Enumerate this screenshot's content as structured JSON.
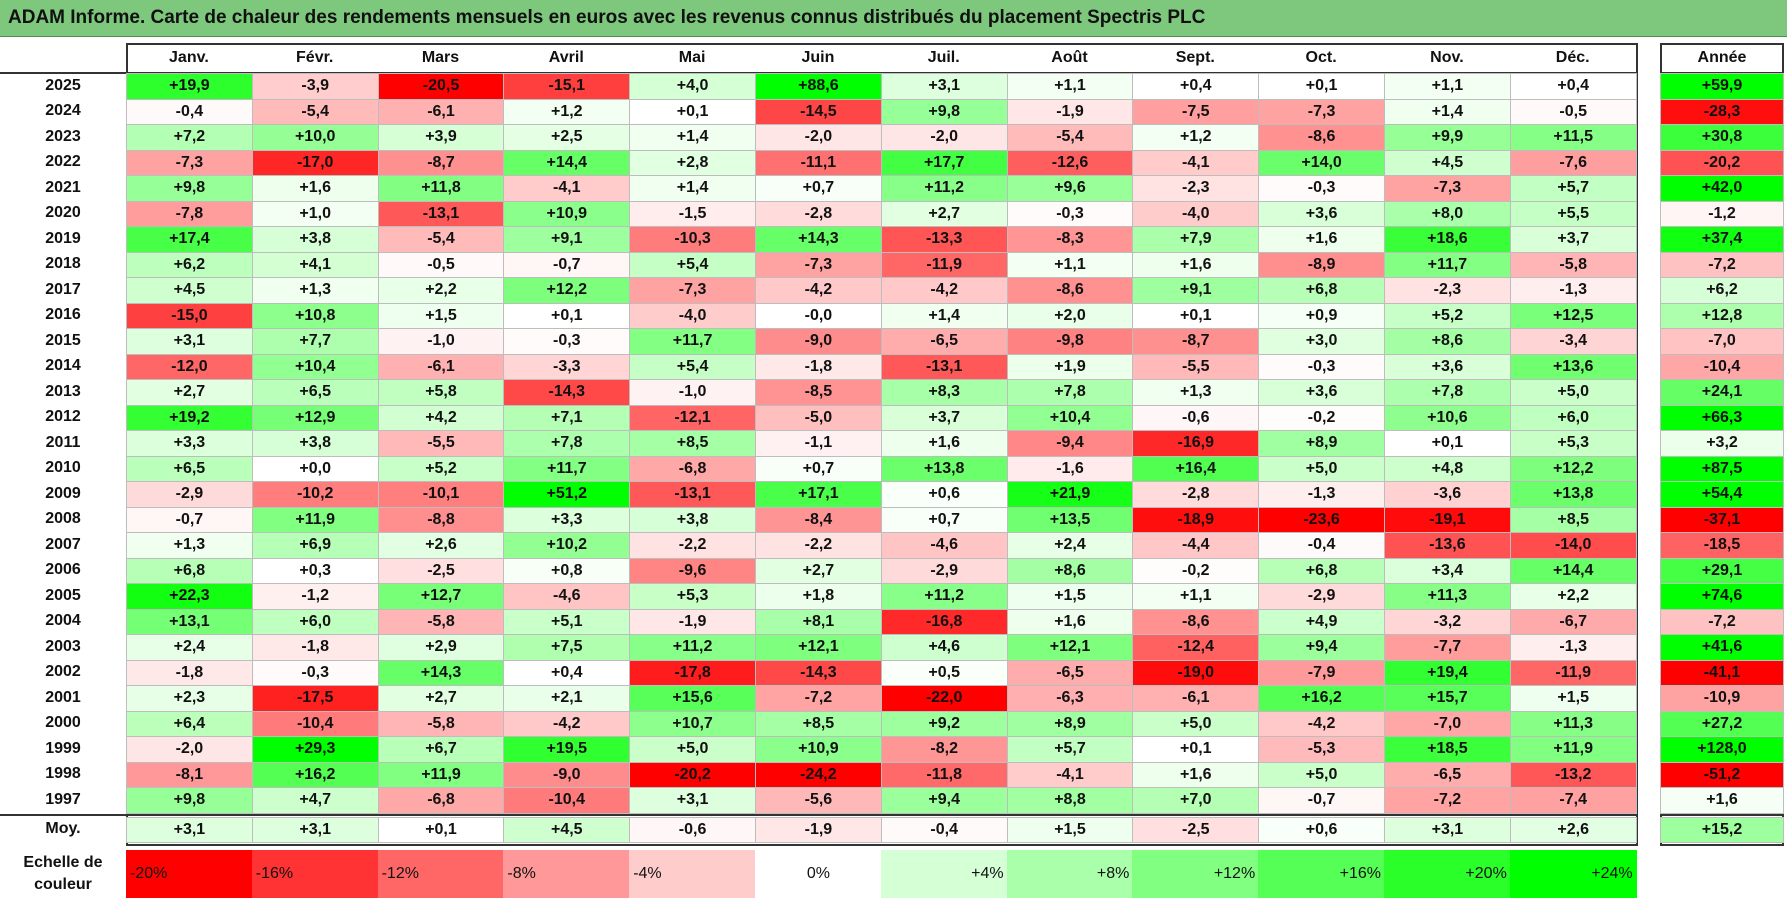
{
  "title": "ADAM Informe. Carte de chaleur des rendements mensuels en euros avec les revenus connus distribués du placement Spectris PLC",
  "chart_data": {
    "type": "heatmap",
    "title": "ADAM Informe. Carte de chaleur des rendements mensuels en euros avec les revenus connus distribués du placement Spectris PLC",
    "months": [
      "Janv.",
      "Févr.",
      "Mars",
      "Avril",
      "Mai",
      "Juin",
      "Juil.",
      "Août",
      "Sept.",
      "Oct.",
      "Nov.",
      "Déc."
    ],
    "year_header": "Année",
    "rows": [
      {
        "year": "2025",
        "values": [
          "+19,9",
          "-3,9",
          "-20,5",
          "-15,1",
          "+4,0",
          "+88,6",
          "+3,1",
          "+1,1",
          "+0,4",
          "+0,1",
          "+1,1",
          "+0,4"
        ],
        "annual": "+59,9"
      },
      {
        "year": "2024",
        "values": [
          "-0,4",
          "-5,4",
          "-6,1",
          "+1,2",
          "+0,1",
          "-14,5",
          "+9,8",
          "-1,9",
          "-7,5",
          "-7,3",
          "+1,4",
          "-0,5"
        ],
        "annual": "-28,3"
      },
      {
        "year": "2023",
        "values": [
          "+7,2",
          "+10,0",
          "+3,9",
          "+2,5",
          "+1,4",
          "-2,0",
          "-2,0",
          "-5,4",
          "+1,2",
          "-8,6",
          "+9,9",
          "+11,5"
        ],
        "annual": "+30,8"
      },
      {
        "year": "2022",
        "values": [
          "-7,3",
          "-17,0",
          "-8,7",
          "+14,4",
          "+2,8",
          "-11,1",
          "+17,7",
          "-12,6",
          "-4,1",
          "+14,0",
          "+4,5",
          "-7,6"
        ],
        "annual": "-20,2"
      },
      {
        "year": "2021",
        "values": [
          "+9,8",
          "+1,6",
          "+11,8",
          "-4,1",
          "+1,4",
          "+0,7",
          "+11,2",
          "+9,6",
          "-2,3",
          "-0,3",
          "-7,3",
          "+5,7"
        ],
        "annual": "+42,0"
      },
      {
        "year": "2020",
        "values": [
          "-7,8",
          "+1,0",
          "-13,1",
          "+10,9",
          "-1,5",
          "-2,8",
          "+2,7",
          "-0,3",
          "-4,0",
          "+3,6",
          "+8,0",
          "+5,5"
        ],
        "annual": "-1,2"
      },
      {
        "year": "2019",
        "values": [
          "+17,4",
          "+3,8",
          "-5,4",
          "+9,1",
          "-10,3",
          "+14,3",
          "-13,3",
          "-8,3",
          "+7,9",
          "+1,6",
          "+18,6",
          "+3,7"
        ],
        "annual": "+37,4"
      },
      {
        "year": "2018",
        "values": [
          "+6,2",
          "+4,1",
          "-0,5",
          "-0,7",
          "+5,4",
          "-7,3",
          "-11,9",
          "+1,1",
          "+1,6",
          "-8,9",
          "+11,7",
          "-5,8"
        ],
        "annual": "-7,2"
      },
      {
        "year": "2017",
        "values": [
          "+4,5",
          "+1,3",
          "+2,2",
          "+12,2",
          "-7,3",
          "-4,2",
          "-4,2",
          "-8,6",
          "+9,1",
          "+6,8",
          "-2,3",
          "-1,3"
        ],
        "annual": "+6,2"
      },
      {
        "year": "2016",
        "values": [
          "-15,0",
          "+10,8",
          "+1,5",
          "+0,1",
          "-4,0",
          "-0,0",
          "+1,4",
          "+2,0",
          "+0,1",
          "+0,9",
          "+5,2",
          "+12,5"
        ],
        "annual": "+12,8"
      },
      {
        "year": "2015",
        "values": [
          "+3,1",
          "+7,7",
          "-1,0",
          "-0,3",
          "+11,7",
          "-9,0",
          "-6,5",
          "-9,8",
          "-8,7",
          "+3,0",
          "+8,6",
          "-3,4"
        ],
        "annual": "-7,0"
      },
      {
        "year": "2014",
        "values": [
          "-12,0",
          "+10,4",
          "-6,1",
          "-3,3",
          "+5,4",
          "-1,8",
          "-13,1",
          "+1,9",
          "-5,5",
          "-0,3",
          "+3,6",
          "+13,6"
        ],
        "annual": "-10,4"
      },
      {
        "year": "2013",
        "values": [
          "+2,7",
          "+6,5",
          "+5,8",
          "-14,3",
          "-1,0",
          "-8,5",
          "+8,3",
          "+7,8",
          "+1,3",
          "+3,6",
          "+7,8",
          "+5,0"
        ],
        "annual": "+24,1"
      },
      {
        "year": "2012",
        "values": [
          "+19,2",
          "+12,9",
          "+4,2",
          "+7,1",
          "-12,1",
          "-5,0",
          "+3,7",
          "+10,4",
          "-0,6",
          "-0,2",
          "+10,6",
          "+6,0"
        ],
        "annual": "+66,3"
      },
      {
        "year": "2011",
        "values": [
          "+3,3",
          "+3,8",
          "-5,5",
          "+7,8",
          "+8,5",
          "-1,1",
          "+1,6",
          "-9,4",
          "-16,9",
          "+8,9",
          "+0,1",
          "+5,3"
        ],
        "annual": "+3,2"
      },
      {
        "year": "2010",
        "values": [
          "+6,5",
          "+0,0",
          "+5,2",
          "+11,7",
          "-6,8",
          "+0,7",
          "+13,8",
          "-1,6",
          "+16,4",
          "+5,0",
          "+4,8",
          "+12,2"
        ],
        "annual": "+87,5"
      },
      {
        "year": "2009",
        "values": [
          "-2,9",
          "-10,2",
          "-10,1",
          "+51,2",
          "-13,1",
          "+17,1",
          "+0,6",
          "+21,9",
          "-2,8",
          "-1,3",
          "-3,6",
          "+13,8"
        ],
        "annual": "+54,4"
      },
      {
        "year": "2008",
        "values": [
          "-0,7",
          "+11,9",
          "-8,8",
          "+3,3",
          "+3,8",
          "-8,4",
          "+0,7",
          "+13,5",
          "-18,9",
          "-23,6",
          "-19,1",
          "+8,5"
        ],
        "annual": "-37,1"
      },
      {
        "year": "2007",
        "values": [
          "+1,3",
          "+6,9",
          "+2,6",
          "+10,2",
          "-2,2",
          "-2,2",
          "-4,6",
          "+2,4",
          "-4,4",
          "-0,4",
          "-13,6",
          "-14,0"
        ],
        "annual": "-18,5"
      },
      {
        "year": "2006",
        "values": [
          "+6,8",
          "+0,3",
          "-2,5",
          "+0,8",
          "-9,6",
          "+2,7",
          "-2,9",
          "+8,6",
          "-0,2",
          "+6,8",
          "+3,4",
          "+14,4"
        ],
        "annual": "+29,1"
      },
      {
        "year": "2005",
        "values": [
          "+22,3",
          "-1,2",
          "+12,7",
          "-4,6",
          "+5,3",
          "+1,8",
          "+11,2",
          "+1,5",
          "+1,1",
          "-2,9",
          "+11,3",
          "+2,2"
        ],
        "annual": "+74,6"
      },
      {
        "year": "2004",
        "values": [
          "+13,1",
          "+6,0",
          "-5,8",
          "+5,1",
          "-1,9",
          "+8,1",
          "-16,8",
          "+1,6",
          "-8,6",
          "+4,9",
          "-3,2",
          "-6,7"
        ],
        "annual": "-7,2"
      },
      {
        "year": "2003",
        "values": [
          "+2,4",
          "-1,8",
          "+2,9",
          "+7,5",
          "+11,2",
          "+12,1",
          "+4,6",
          "+12,1",
          "-12,4",
          "+9,4",
          "-7,7",
          "-1,3"
        ],
        "annual": "+41,6"
      },
      {
        "year": "2002",
        "values": [
          "-1,8",
          "-0,3",
          "+14,3",
          "+0,4",
          "-17,8",
          "-14,3",
          "+0,5",
          "-6,5",
          "-19,0",
          "-7,9",
          "+19,4",
          "-11,9"
        ],
        "annual": "-41,1"
      },
      {
        "year": "2001",
        "values": [
          "+2,3",
          "-17,5",
          "+2,7",
          "+2,1",
          "+15,6",
          "-7,2",
          "-22,0",
          "-6,3",
          "-6,1",
          "+16,2",
          "+15,7",
          "+1,5"
        ],
        "annual": "-10,9"
      },
      {
        "year": "2000",
        "values": [
          "+6,4",
          "-10,4",
          "-5,8",
          "-4,2",
          "+10,7",
          "+8,5",
          "+9,2",
          "+8,9",
          "+5,0",
          "-4,2",
          "-7,0",
          "+11,3"
        ],
        "annual": "+27,2"
      },
      {
        "year": "1999",
        "values": [
          "-2,0",
          "+29,3",
          "+6,7",
          "+19,5",
          "+5,0",
          "+10,9",
          "-8,2",
          "+5,7",
          "+0,1",
          "-5,3",
          "+18,5",
          "+11,9"
        ],
        "annual": "+128,0"
      },
      {
        "year": "1998",
        "values": [
          "-8,1",
          "+16,2",
          "+11,9",
          "-9,0",
          "-20,2",
          "-24,2",
          "-11,8",
          "-4,1",
          "+1,6",
          "+5,0",
          "-6,5",
          "-13,2"
        ],
        "annual": "-51,2"
      },
      {
        "year": "1997",
        "values": [
          "+9,8",
          "+4,7",
          "-6,8",
          "-10,4",
          "+3,1",
          "-5,6",
          "+9,4",
          "+8,8",
          "+7,0",
          "-0,7",
          "-7,2",
          "-7,4"
        ],
        "annual": "+1,6"
      }
    ],
    "average": {
      "label": "Moy.",
      "values": [
        "+3,1",
        "+3,1",
        "+0,1",
        "+4,5",
        "-0,6",
        "-1,9",
        "-0,4",
        "+1,5",
        "-2,5",
        "+0,6",
        "+3,1",
        "+2,6"
      ],
      "annual": "+15,2"
    },
    "scale": {
      "label_line1": "Echelle de",
      "label_line2": "couleur",
      "stops": [
        "-20%",
        "-16%",
        "-12%",
        "-8%",
        "-4%",
        "0%",
        "+4%",
        "+8%",
        "+12%",
        "+16%",
        "+20%",
        "+24%"
      ],
      "stop_values": [
        -20,
        -16,
        -12,
        -8,
        -4,
        0,
        4,
        8,
        12,
        16,
        20,
        24
      ]
    },
    "colors": {
      "negative_max": "#ff0000",
      "neutral": "#ffffff",
      "positive_max": "#00ff00",
      "title_bar": "#7dc87d"
    }
  }
}
